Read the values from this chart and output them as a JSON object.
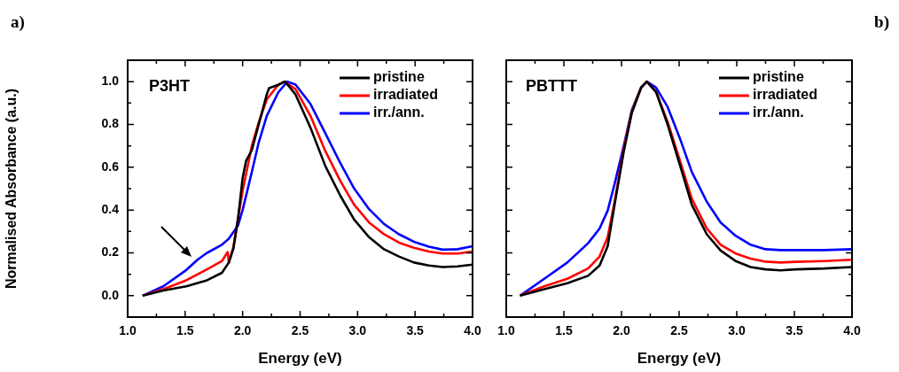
{
  "chart_data": [
    {
      "type": "line",
      "ylabel": "Normalised Absorbance (a.u.)",
      "xlabel": "Energy (eV)",
      "annotations": [
        "a)",
        "P3HT"
      ],
      "xlim": [
        1.0,
        4.0
      ],
      "ylim": [
        -0.1,
        1.1
      ],
      "xticks": [
        {
          "value": 1,
          "label": "1.0"
        },
        {
          "value": 1.25,
          "label": null
        },
        1.5,
        {
          "value": 1.75,
          "label": null
        },
        {
          "value": 2,
          "label": "2.0"
        },
        {
          "value": 2.25,
          "label": null
        },
        2.5,
        {
          "value": 2.75,
          "label": null
        },
        {
          "value": 3,
          "label": "3.0"
        },
        {
          "value": 3.25,
          "label": null
        },
        3.5,
        {
          "value": 3.75,
          "label": null
        },
        {
          "value": 4,
          "label": "4.0"
        }
      ],
      "yticks": [
        {
          "value": 0.0,
          "label": "0.0"
        },
        {
          "value": 0.1,
          "label": null
        },
        0.2,
        {
          "value": 0.3,
          "label": null
        },
        0.4,
        {
          "value": 0.5,
          "label": null
        },
        0.6,
        {
          "value": 0.7,
          "label": null
        },
        0.8,
        {
          "value": 0.9,
          "label": null
        },
        {
          "value": 1.0,
          "label": "1.0"
        }
      ],
      "legend": "top right",
      "grid": false,
      "marker": "none",
      "line_style": "solid",
      "series": [
        {
          "name": "pristine",
          "color": "#000000",
          "x": [
            1.13,
            1.31,
            1.51,
            1.69,
            1.82,
            1.88,
            1.92,
            1.96,
            2.0,
            2.03,
            2.08,
            2.14,
            2.21,
            2.23,
            2.31,
            2.37,
            2.46,
            2.59,
            2.72,
            2.85,
            2.97,
            3.1,
            3.23,
            3.36,
            3.49,
            3.62,
            3.74,
            3.87,
            4.0
          ],
          "values": [
            0.0,
            0.024,
            0.044,
            0.072,
            0.107,
            0.155,
            0.22,
            0.36,
            0.55,
            0.63,
            0.68,
            0.8,
            0.94,
            0.97,
            0.985,
            1.0,
            0.94,
            0.785,
            0.605,
            0.467,
            0.356,
            0.273,
            0.217,
            0.183,
            0.155,
            0.141,
            0.134,
            0.137,
            0.145
          ]
        },
        {
          "name": "irradiated",
          "color": "#ff0000",
          "x": [
            1.13,
            1.31,
            1.51,
            1.69,
            1.82,
            1.87,
            1.88,
            1.92,
            1.96,
            2.0,
            2.08,
            2.14,
            2.21,
            2.31,
            2.36,
            2.46,
            2.59,
            2.72,
            2.85,
            2.97,
            3.1,
            3.23,
            3.36,
            3.49,
            3.62,
            3.74,
            3.87,
            4.0
          ],
          "values": [
            0.0,
            0.03,
            0.072,
            0.123,
            0.162,
            0.204,
            0.155,
            0.23,
            0.36,
            0.49,
            0.7,
            0.81,
            0.917,
            0.985,
            1.0,
            0.965,
            0.84,
            0.675,
            0.536,
            0.425,
            0.342,
            0.287,
            0.248,
            0.224,
            0.206,
            0.197,
            0.197,
            0.206
          ]
        },
        {
          "name": "irr./ann.",
          "color": "#0000ff",
          "x": [
            1.13,
            1.31,
            1.51,
            1.61,
            1.69,
            1.82,
            1.88,
            1.96,
            2.0,
            2.08,
            2.14,
            2.21,
            2.31,
            2.39,
            2.46,
            2.59,
            2.72,
            2.85,
            2.97,
            3.1,
            3.23,
            3.36,
            3.49,
            3.62,
            3.74,
            3.87,
            4.0
          ],
          "values": [
            0.0,
            0.044,
            0.12,
            0.169,
            0.2,
            0.238,
            0.266,
            0.328,
            0.4,
            0.578,
            0.716,
            0.84,
            0.95,
            1.0,
            0.986,
            0.896,
            0.758,
            0.619,
            0.501,
            0.404,
            0.335,
            0.287,
            0.252,
            0.229,
            0.215,
            0.217,
            0.231
          ]
        }
      ]
    },
    {
      "type": "line",
      "xlabel": "Energy (eV)",
      "annotations": [
        "b)",
        "PBTTT"
      ],
      "xlim": [
        1.0,
        4.0
      ],
      "ylim": [
        -0.1,
        1.1
      ],
      "tick_labels": "x",
      "xticks": [
        {
          "value": 1,
          "label": "1.0"
        },
        {
          "value": 1.25,
          "label": null
        },
        1.5,
        {
          "value": 1.75,
          "label": null
        },
        {
          "value": 2,
          "label": "2.0"
        },
        {
          "value": 2.25,
          "label": null
        },
        2.5,
        {
          "value": 2.75,
          "label": null
        },
        {
          "value": 3,
          "label": "3.0"
        },
        {
          "value": 3.25,
          "label": null
        },
        3.5,
        {
          "value": 3.75,
          "label": null
        },
        {
          "value": 4,
          "label": "4.0"
        }
      ],
      "yticks": [
        {
          "value": 0.0,
          "label": null
        },
        {
          "value": 0.1,
          "label": null
        },
        {
          "value": 0.2,
          "label": null
        },
        {
          "value": 0.3,
          "label": null
        },
        {
          "value": 0.4,
          "label": null
        },
        {
          "value": 0.5,
          "label": null
        },
        {
          "value": 0.6,
          "label": null
        },
        {
          "value": 0.7,
          "label": null
        },
        {
          "value": 0.8,
          "label": null
        },
        {
          "value": 0.9,
          "label": null
        },
        {
          "value": 1.0,
          "label": null
        }
      ],
      "legend": "top right",
      "grid": false,
      "marker": "none",
      "line_style": "solid",
      "series": [
        {
          "name": "pristine",
          "color": "#000000",
          "x": [
            1.12,
            1.33,
            1.53,
            1.71,
            1.81,
            1.88,
            1.94,
            2.02,
            2.09,
            2.17,
            2.22,
            2.3,
            2.4,
            2.51,
            2.61,
            2.74,
            2.86,
            2.99,
            3.12,
            3.25,
            3.38,
            3.51,
            3.76,
            4.0
          ],
          "values": [
            0.0,
            0.03,
            0.058,
            0.093,
            0.141,
            0.231,
            0.425,
            0.675,
            0.855,
            0.972,
            1.0,
            0.952,
            0.8,
            0.605,
            0.425,
            0.287,
            0.211,
            0.162,
            0.134,
            0.123,
            0.118,
            0.123,
            0.127,
            0.134
          ]
        },
        {
          "name": "irradiated",
          "color": "#ff0000",
          "x": [
            1.12,
            1.33,
            1.53,
            1.71,
            1.81,
            1.88,
            1.94,
            2.02,
            2.09,
            2.17,
            2.22,
            2.3,
            2.4,
            2.51,
            2.61,
            2.74,
            2.86,
            2.99,
            3.12,
            3.25,
            3.38,
            3.51,
            3.76,
            4.0
          ],
          "values": [
            0.0,
            0.044,
            0.079,
            0.127,
            0.183,
            0.273,
            0.439,
            0.688,
            0.862,
            0.972,
            1.0,
            0.952,
            0.813,
            0.626,
            0.453,
            0.314,
            0.238,
            0.197,
            0.173,
            0.159,
            0.155,
            0.158,
            0.162,
            0.168
          ]
        },
        {
          "name": "irr./ann.",
          "color": "#0000ff",
          "x": [
            1.12,
            1.33,
            1.53,
            1.71,
            1.81,
            1.88,
            1.94,
            2.02,
            2.09,
            2.17,
            2.22,
            2.3,
            2.4,
            2.51,
            2.61,
            2.74,
            2.86,
            2.99,
            3.12,
            3.25,
            3.38,
            3.51,
            3.76,
            4.0
          ],
          "values": [
            0.0,
            0.079,
            0.155,
            0.245,
            0.314,
            0.397,
            0.522,
            0.702,
            0.868,
            0.972,
            1.0,
            0.972,
            0.882,
            0.73,
            0.578,
            0.439,
            0.342,
            0.28,
            0.238,
            0.217,
            0.213,
            0.213,
            0.213,
            0.217
          ]
        }
      ]
    }
  ]
}
